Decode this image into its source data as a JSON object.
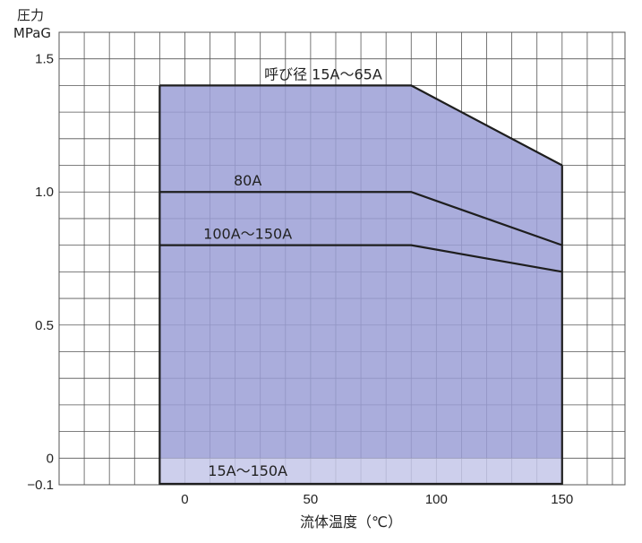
{
  "chart_data": {
    "type": "area",
    "ylabel_line1": "圧力",
    "ylabel_line2": "MPaG",
    "xlabel": "流体温度（℃）",
    "xlim": [
      -50,
      175
    ],
    "ylim": [
      -0.1,
      1.6
    ],
    "xticks": [
      0,
      50,
      100,
      150
    ],
    "yticks": [
      -0.1,
      0,
      0.5,
      1.0,
      1.5
    ],
    "ytick_labels": [
      "−0.1",
      "0",
      "0.5",
      "1.0",
      "1.5"
    ],
    "xtick_labels": [
      "0",
      "50",
      "100",
      "150"
    ],
    "grid": true,
    "colors": {
      "fill": "#9b9fd6",
      "vacuum_fill": "#c4c7e9",
      "line": "#1e1e1e",
      "grid": "#555555"
    },
    "series": [
      {
        "name": "呼び径 15A～65A",
        "x": [
          -10,
          90,
          150
        ],
        "y": [
          1.4,
          1.4,
          1.1
        ]
      },
      {
        "name": "80A",
        "x": [
          -10,
          90,
          150
        ],
        "y": [
          1.0,
          1.0,
          0.8
        ]
      },
      {
        "name": "100A～150A",
        "x": [
          -10,
          90,
          150
        ],
        "y": [
          0.8,
          0.8,
          0.7
        ]
      }
    ],
    "vacuum_region": {
      "label": "15A～150A",
      "x": [
        -10,
        150
      ],
      "y": [
        -0.1,
        0
      ]
    }
  }
}
